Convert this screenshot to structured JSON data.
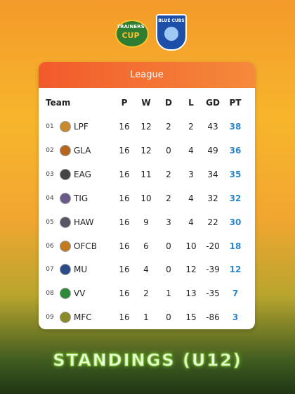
{
  "logos": {
    "left": [
      "TRAINERS",
      "CUP"
    ],
    "right": "BLUE CUBS"
  },
  "table": {
    "title": "League",
    "columns": [
      "Team",
      "P",
      "W",
      "D",
      "L",
      "GD",
      "PT"
    ],
    "rows": [
      [
        "01",
        "LPF",
        16,
        12,
        2,
        2,
        43,
        38
      ],
      [
        "02",
        "GLA",
        16,
        12,
        0,
        4,
        49,
        36
      ],
      [
        "03",
        "EAG",
        16,
        11,
        2,
        3,
        34,
        35
      ],
      [
        "04",
        "TIG",
        16,
        10,
        2,
        4,
        32,
        32
      ],
      [
        "05",
        "HAW",
        16,
        9,
        3,
        4,
        22,
        30
      ],
      [
        "06",
        "OFCB",
        16,
        6,
        0,
        10,
        -20,
        18
      ],
      [
        "07",
        "MU",
        16,
        4,
        0,
        12,
        -39,
        12
      ],
      [
        "08",
        "VV",
        16,
        2,
        1,
        13,
        -35,
        7
      ],
      [
        "09",
        "MFC",
        16,
        1,
        0,
        15,
        -86,
        3
      ]
    ]
  },
  "footer": "STANDINGS (U12)"
}
